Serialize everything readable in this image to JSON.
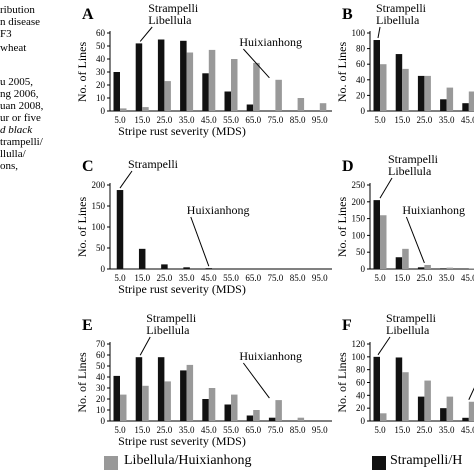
{
  "caption": {
    "lines": [
      "ribution",
      "n disease",
      "F3",
      "wheat",
      "",
      "u 2005,",
      "ng 2006,",
      "uan 2008,",
      "ur or five",
      "d black",
      "trampelli/",
      "llulla/",
      "ons,"
    ]
  },
  "legend": {
    "grey_label": "Libellula/Huixianhong",
    "black_label": "Strampelli/H"
  },
  "colors": {
    "black": "#111111",
    "grey": "#999999",
    "axis": "#000000"
  },
  "chart_data": [
    {
      "id": "A",
      "type": "bar",
      "categories": [
        "5.0",
        "15.0",
        "25.0",
        "35.0",
        "45.0",
        "55.0",
        "65.0",
        "75.0",
        "85.0",
        "95.0"
      ],
      "series": [
        {
          "name": "Strampelli/Huixianhong",
          "color": "black",
          "values": [
            30,
            52,
            55,
            54,
            29,
            15,
            5,
            null,
            null,
            null
          ]
        },
        {
          "name": "Libellula/Huixianhong",
          "color": "grey",
          "values": [
            2,
            3,
            23,
            45,
            47,
            40,
            37,
            24,
            10,
            6
          ]
        }
      ],
      "ylabel": "No. of Lines",
      "xlabel": "Stripe rust severity (MDS)",
      "ylim": [
        0,
        60
      ],
      "yticks": [
        0,
        10,
        20,
        30,
        40,
        50,
        60
      ],
      "annotations": [
        {
          "text": "Strampelli\nLibellula",
          "target_index": 1
        },
        {
          "text": "Huixianhong",
          "target_index": 7
        }
      ]
    },
    {
      "id": "B",
      "type": "bar",
      "categories": [
        "5.0",
        "15.0",
        "25.0",
        "35.0",
        "45.0"
      ],
      "series": [
        {
          "name": "Strampelli/Huixianhong",
          "color": "black",
          "values": [
            91,
            73,
            45,
            15,
            10
          ]
        },
        {
          "name": "Libellula/Huixianhong",
          "color": "grey",
          "values": [
            60,
            54,
            45,
            30,
            25
          ]
        }
      ],
      "ylabel": "No. of Lines",
      "xlabel": "",
      "ylim": [
        0,
        100
      ],
      "yticks": [
        0,
        20,
        40,
        60,
        80,
        100
      ],
      "annotations": [
        {
          "text": "Strampelli\nLibellula",
          "target_index": 0
        }
      ]
    },
    {
      "id": "C",
      "type": "bar",
      "categories": [
        "5.0",
        "15.0",
        "25.0",
        "35.0",
        "45.0",
        "55.0",
        "65.0",
        "75.0",
        "85.0",
        "95.0"
      ],
      "series": [
        {
          "name": "Strampelli/Huixianhong",
          "color": "black",
          "values": [
            188,
            48,
            11,
            4,
            2,
            null,
            null,
            null,
            null,
            null
          ]
        }
      ],
      "ylabel": "No. of Lines",
      "xlabel": "Stripe rust severity (MDS)",
      "ylim": [
        0,
        200
      ],
      "yticks": [
        0,
        50,
        100,
        150,
        200
      ],
      "annotations": [
        {
          "text": "Strampelli",
          "target_index": 0
        },
        {
          "text": "Huixianhong",
          "target_index": 4
        }
      ]
    },
    {
      "id": "D",
      "type": "bar",
      "categories": [
        "5.0",
        "15.0",
        "25.0",
        "35.0",
        "45.0"
      ],
      "series": [
        {
          "name": "Strampelli/Huixianhong",
          "color": "black",
          "values": [
            205,
            35,
            5,
            2,
            null
          ]
        },
        {
          "name": "Libellula/Huixianhong",
          "color": "grey",
          "values": [
            160,
            60,
            12,
            4,
            2
          ]
        }
      ],
      "ylabel": "No. of Lines",
      "xlabel": "",
      "ylim": [
        0,
        250
      ],
      "yticks": [
        0,
        50,
        100,
        150,
        200,
        250
      ],
      "annotations": [
        {
          "text": "Strampelli\nLibellula",
          "target_index": 0
        },
        {
          "text": "Huixianhong",
          "target_index": 2
        }
      ]
    },
    {
      "id": "E",
      "type": "bar",
      "categories": [
        "5.0",
        "15.0",
        "25.0",
        "35.0",
        "45.0",
        "55.0",
        "65.0",
        "75.0",
        "85.0",
        "95.0"
      ],
      "series": [
        {
          "name": "Strampelli/Huixianhong",
          "color": "black",
          "values": [
            41,
            58,
            58,
            46,
            20,
            15,
            5,
            3,
            null,
            null
          ]
        },
        {
          "name": "Libellula/Huixianhong",
          "color": "grey",
          "values": [
            24,
            32,
            36,
            51,
            30,
            24,
            10,
            19,
            3,
            null
          ]
        }
      ],
      "ylabel": "No. of Lines",
      "xlabel": "Stripe rust severity (MDS)",
      "ylim": [
        0,
        70
      ],
      "yticks": [
        0,
        10,
        20,
        30,
        40,
        50,
        60,
        70
      ],
      "annotations": [
        {
          "text": "Strampelli\nLibellula",
          "target_index": 1
        },
        {
          "text": "Huixianhong",
          "target_index": 7
        }
      ]
    },
    {
      "id": "F",
      "type": "bar",
      "categories": [
        "5.0",
        "15.0",
        "25.0",
        "35.0",
        "45.0"
      ],
      "series": [
        {
          "name": "Strampelli/Huixianhong",
          "color": "black",
          "values": [
            100,
            99,
            38,
            20,
            5
          ]
        },
        {
          "name": "Libellula/Huixianhong",
          "color": "grey",
          "values": [
            12,
            76,
            63,
            38,
            30
          ]
        }
      ],
      "ylabel": "No. of Lines",
      "xlabel": "",
      "ylim": [
        0,
        120
      ],
      "yticks": [
        0,
        20,
        40,
        60,
        80,
        100,
        120
      ],
      "annotations": [
        {
          "text": "Strampelli\nLibellula",
          "target_index": 0
        },
        {
          "text": "H",
          "target_index": 4
        }
      ]
    }
  ]
}
